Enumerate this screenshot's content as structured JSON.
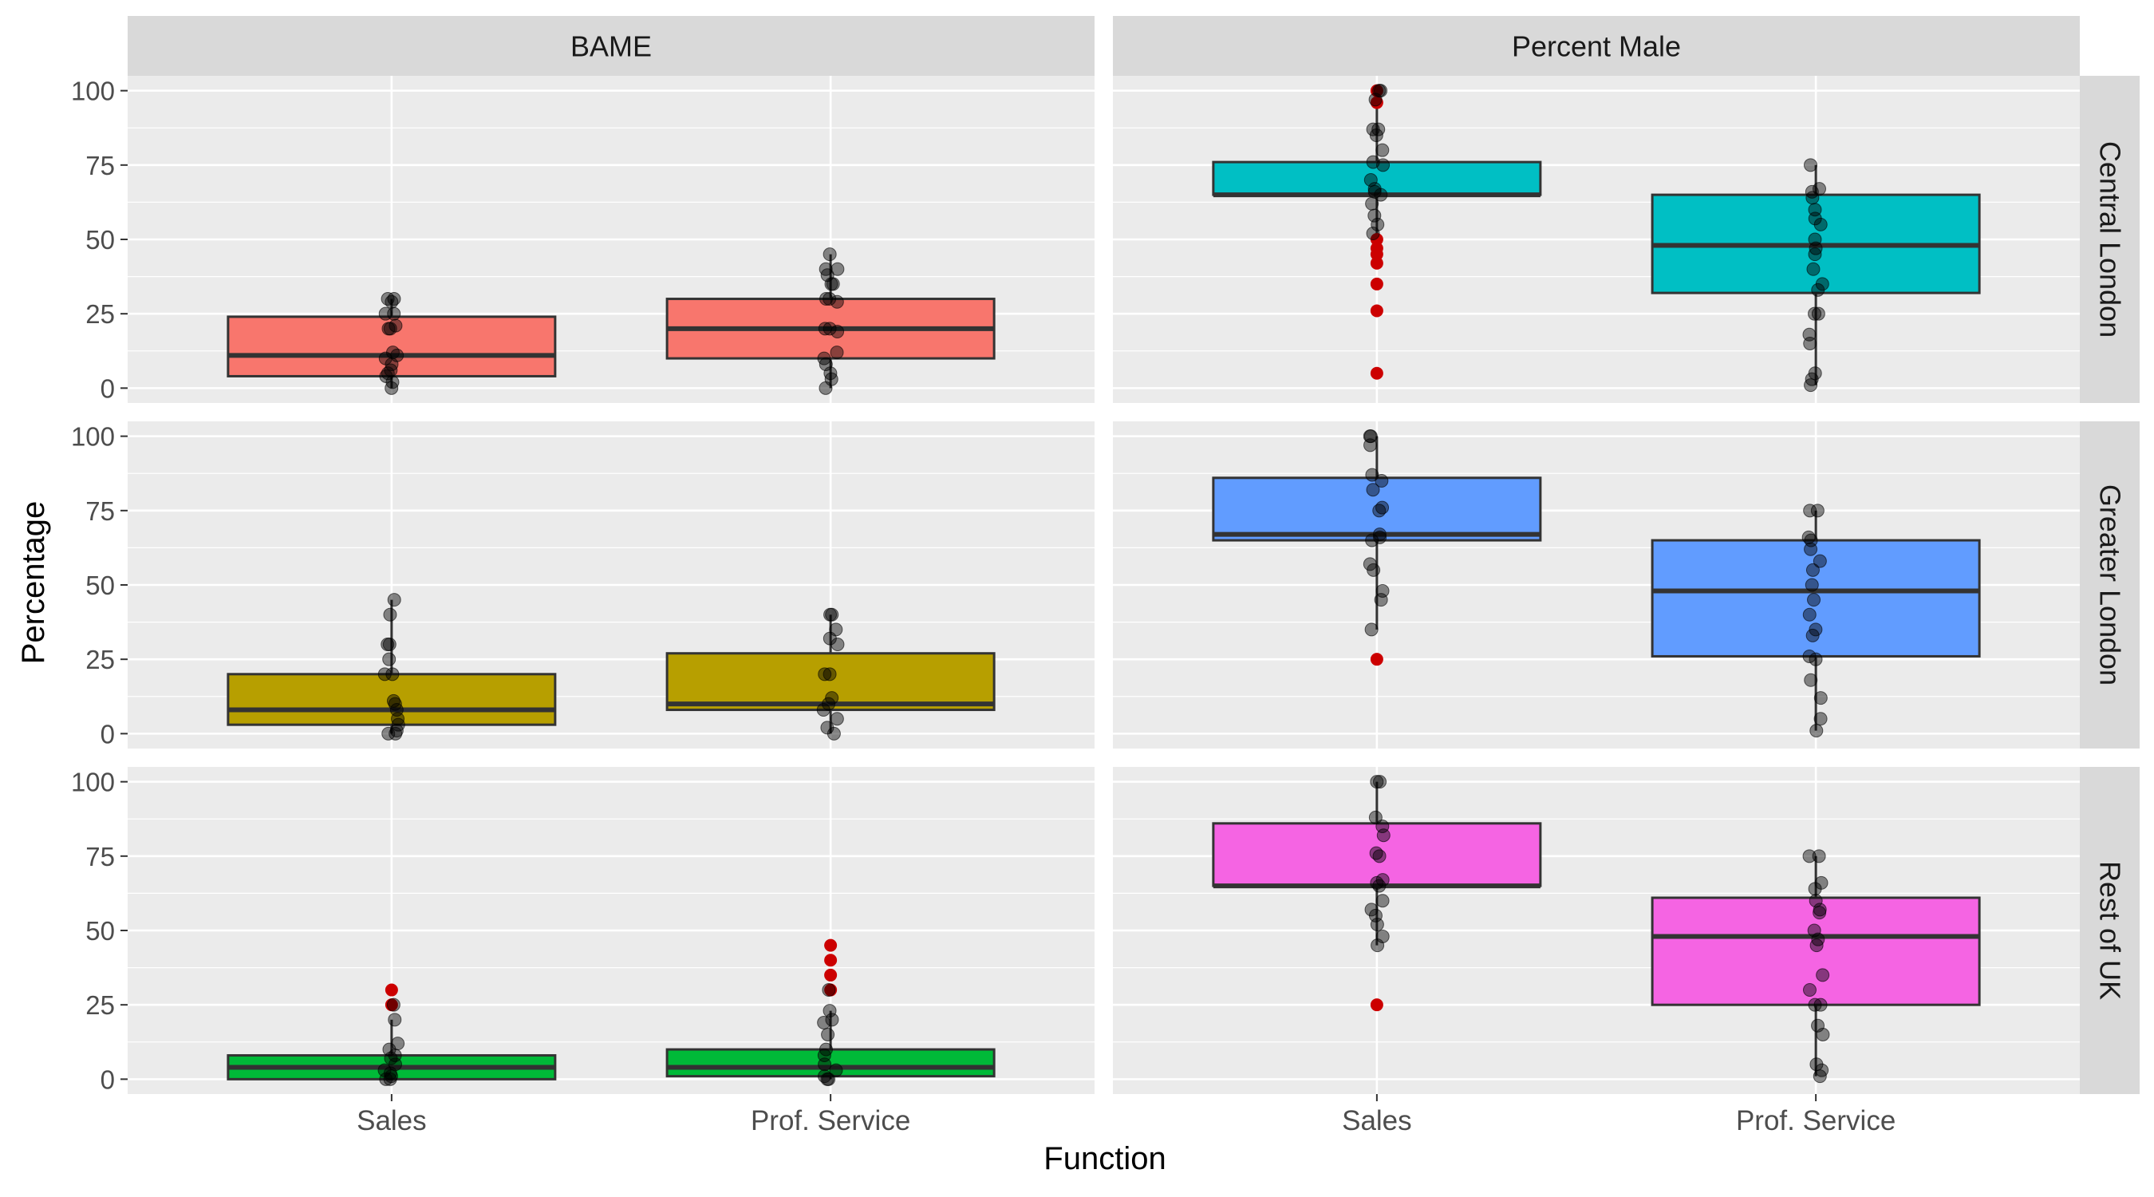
{
  "chart_data": {
    "type": "box",
    "title": "",
    "xlabel": "Function",
    "ylabel": "Percentage",
    "ylim": [
      -5,
      105
    ],
    "yticks": [
      0,
      25,
      50,
      75,
      100
    ],
    "categories": [
      "Sales",
      "Prof. Service"
    ],
    "facet_columns": [
      "BAME",
      "Percent Male"
    ],
    "facet_rows": [
      "Central London",
      "Greater London",
      "Rest of UK"
    ],
    "colors": {
      "panel_bg": "#EBEBEB",
      "strip_bg": "#D9D9D9",
      "grid": "#FFFFFF",
      "outlier": "#CC0000",
      "point": "#000000"
    },
    "panels": [
      {
        "column": "BAME",
        "row": "Central London",
        "fill": "#F8766D",
        "boxes": [
          {
            "category": "Sales",
            "q1": 4,
            "median": 11,
            "q3": 24,
            "lower": 0,
            "upper": 30,
            "points": [
              0,
              2,
              4,
              5,
              6,
              8,
              10,
              11,
              12,
              20,
              20,
              21,
              25,
              25,
              29,
              30,
              30
            ],
            "outliers": []
          },
          {
            "category": "Prof. Service",
            "q1": 10,
            "median": 20,
            "q3": 30,
            "lower": 0,
            "upper": 45,
            "points": [
              0,
              3,
              5,
              8,
              10,
              12,
              19,
              20,
              20,
              29,
              30,
              30,
              35,
              35,
              38,
              40,
              40,
              45
            ],
            "outliers": []
          }
        ]
      },
      {
        "column": "Percent Male",
        "row": "Central London",
        "fill": "#00BFC4",
        "boxes": [
          {
            "category": "Sales",
            "q1": 65,
            "median": 65,
            "q3": 76,
            "lower": 52,
            "upper": 100,
            "points": [
              52,
              55,
              58,
              62,
              65,
              66,
              67,
              70,
              75,
              76,
              80,
              85,
              87,
              87,
              97,
              100,
              100
            ],
            "outliers": [
              5,
              26,
              35,
              42,
              45,
              47,
              50,
              96,
              100
            ]
          },
          {
            "category": "Prof. Service",
            "q1": 32,
            "median": 48,
            "q3": 65,
            "lower": 1,
            "upper": 75,
            "points": [
              1,
              3,
              5,
              15,
              18,
              25,
              25,
              33,
              35,
              40,
              45,
              47,
              50,
              55,
              57,
              60,
              64,
              66,
              67,
              75
            ],
            "outliers": []
          }
        ]
      },
      {
        "column": "BAME",
        "row": "Greater London",
        "fill": "#B79F00",
        "boxes": [
          {
            "category": "Sales",
            "q1": 3,
            "median": 8,
            "q3": 20,
            "lower": 0,
            "upper": 45,
            "points": [
              0,
              0,
              1,
              3,
              5,
              8,
              10,
              11,
              20,
              20,
              25,
              30,
              30,
              40,
              45
            ],
            "outliers": []
          },
          {
            "category": "Prof. Service",
            "q1": 8,
            "median": 10,
            "q3": 27,
            "lower": 0,
            "upper": 40,
            "points": [
              0,
              2,
              5,
              8,
              10,
              12,
              20,
              20,
              30,
              32,
              35,
              40,
              40
            ],
            "outliers": []
          }
        ]
      },
      {
        "column": "Percent Male",
        "row": "Greater London",
        "fill": "#619CFF",
        "boxes": [
          {
            "category": "Sales",
            "q1": 65,
            "median": 67,
            "q3": 86,
            "lower": 35,
            "upper": 100,
            "points": [
              35,
              45,
              48,
              55,
              57,
              65,
              66,
              67,
              75,
              76,
              82,
              85,
              87,
              97,
              100,
              100
            ],
            "outliers": [
              25
            ]
          },
          {
            "category": "Prof. Service",
            "q1": 26,
            "median": 48,
            "q3": 65,
            "lower": 1,
            "upper": 75,
            "points": [
              1,
              5,
              12,
              18,
              25,
              26,
              33,
              35,
              40,
              45,
              50,
              55,
              58,
              62,
              65,
              66,
              75,
              75
            ],
            "outliers": []
          }
        ]
      },
      {
        "column": "BAME",
        "row": "Rest of UK",
        "fill": "#00BA38",
        "boxes": [
          {
            "category": "Sales",
            "q1": 0,
            "median": 4,
            "q3": 8,
            "lower": 0,
            "upper": 20,
            "points": [
              0,
              0,
              1,
              2,
              3,
              5,
              7,
              8,
              10,
              12,
              20,
              25
            ],
            "outliers": [
              25,
              30
            ]
          },
          {
            "category": "Prof. Service",
            "q1": 1,
            "median": 4,
            "q3": 10,
            "lower": 0,
            "upper": 23,
            "points": [
              0,
              0,
              1,
              3,
              5,
              8,
              10,
              15,
              19,
              20,
              23,
              30
            ],
            "outliers": [
              30,
              35,
              40,
              45
            ]
          }
        ]
      },
      {
        "column": "Percent Male",
        "row": "Rest of UK",
        "fill": "#F564E3",
        "boxes": [
          {
            "category": "Sales",
            "q1": 65,
            "median": 65,
            "q3": 86,
            "lower": 45,
            "upper": 100,
            "points": [
              45,
              48,
              52,
              55,
              57,
              60,
              65,
              66,
              67,
              75,
              76,
              82,
              85,
              88,
              100,
              100
            ],
            "outliers": [
              25
            ]
          },
          {
            "category": "Prof. Service",
            "q1": 25,
            "median": 48,
            "q3": 61,
            "lower": 1,
            "upper": 75,
            "points": [
              1,
              3,
              5,
              15,
              18,
              25,
              25,
              30,
              35,
              45,
              47,
              50,
              56,
              57,
              60,
              64,
              66,
              75,
              75
            ],
            "outliers": []
          }
        ]
      }
    ]
  }
}
